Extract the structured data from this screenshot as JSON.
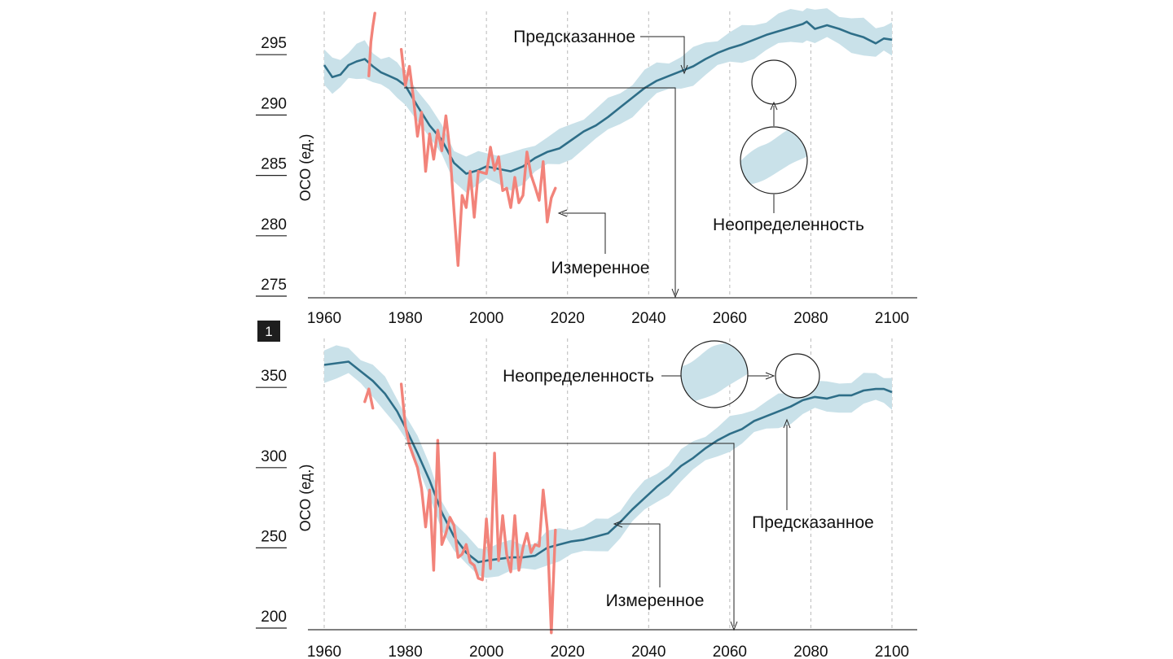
{
  "chart_data": [
    {
      "type": "line",
      "ylabel": "ОСО (ед.)",
      "xticks": [
        "1960",
        "1980",
        "2000",
        "2020",
        "2040",
        "2060",
        "2080",
        "2100"
      ],
      "yticks": [
        "275",
        "280",
        "285",
        "290",
        "295"
      ],
      "xlim": [
        1960,
        2100
      ],
      "ylim": [
        274,
        298
      ],
      "grid": "vertical dashed",
      "annotations": {
        "predicted": "Предсказанное",
        "measured": "Измеренное",
        "uncertainty": "Неопределенность"
      },
      "predicted_x": [
        1960,
        1962,
        1964,
        1966,
        1968,
        1970,
        1972,
        1974,
        1976,
        1978,
        1980,
        1983,
        1986,
        1989,
        1992,
        1995,
        1998,
        2000,
        2003,
        2006,
        2009,
        2012,
        2015,
        2018,
        2021,
        2024,
        2027,
        2030,
        2033,
        2036,
        2039,
        2042,
        2045,
        2048,
        2051,
        2054,
        2057,
        2060,
        2063,
        2066,
        2069,
        2072,
        2075,
        2078,
        2079,
        2081,
        2084,
        2087,
        2090,
        2093,
        2096,
        2098,
        2100
      ],
      "predicted_y": [
        293.6,
        292.6,
        292.8,
        293.6,
        293.9,
        294.1,
        293.5,
        293.0,
        292.7,
        292.4,
        291.9,
        290.2,
        288.6,
        287.4,
        285.5,
        284.6,
        284.9,
        285.2,
        285.0,
        284.8,
        285.2,
        285.9,
        286.4,
        286.7,
        287.4,
        288.1,
        288.6,
        289.3,
        290.1,
        290.9,
        291.7,
        292.3,
        292.7,
        293.1,
        293.5,
        294.1,
        294.6,
        295.0,
        295.3,
        295.7,
        296.1,
        296.4,
        296.7,
        297.0,
        297.2,
        296.6,
        296.9,
        296.6,
        296.2,
        295.9,
        295.4,
        295.8,
        295.7
      ],
      "band_width": 1.3,
      "measured_segments": [
        {
          "x": [
            1971,
            1971.5,
            1972,
            1972.5
          ],
          "y": [
            292.7,
            295.5,
            296.8,
            297.9
          ]
        },
        {
          "x": [
            1979,
            1980,
            1981,
            1982,
            1983,
            1984,
            1985,
            1986,
            1987,
            1988,
            1989,
            1990,
            1991,
            1992,
            1993,
            1994,
            1995,
            1996,
            1997,
            1998,
            1999,
            2000,
            2001,
            2002,
            2003,
            2004,
            2005,
            2006,
            2007,
            2008,
            2009,
            2010,
            2011,
            2012,
            2013,
            2014,
            2015,
            2016,
            2017
          ],
          "y": [
            294.9,
            291.9,
            293.5,
            290.9,
            287.7,
            289.7,
            284.8,
            287.9,
            285.8,
            288.2,
            286.5,
            289.4,
            286.5,
            281.6,
            277.0,
            282.8,
            281.8,
            284.8,
            281.0,
            284.8,
            284.7,
            284.6,
            286.8,
            284.9,
            286.0,
            283.2,
            283.4,
            281.8,
            284.3,
            282.2,
            282.8,
            286.4,
            284.5,
            283.5,
            282.4,
            285.6,
            280.6,
            282.6,
            283.4
          ]
        }
      ]
    },
    {
      "type": "line",
      "ylabel": "ОСО (ед.)",
      "xticks": [
        "1960",
        "1980",
        "2000",
        "2020",
        "2040",
        "2060",
        "2080",
        "2100"
      ],
      "yticks": [
        "200",
        "250",
        "300",
        "350"
      ],
      "xlim": [
        1960,
        2100
      ],
      "ylim": [
        195,
        370
      ],
      "grid": "vertical dashed",
      "annotations": {
        "predicted": "Предсказанное",
        "measured": "Измеренное",
        "uncertainty": "Неопределенность"
      },
      "predicted_x": [
        1960,
        1963,
        1966,
        1969,
        1972,
        1975,
        1978,
        1980,
        1983,
        1986,
        1989,
        1992,
        1995,
        1998,
        2000,
        2003,
        2006,
        2009,
        2012,
        2015,
        2018,
        2021,
        2024,
        2027,
        2030,
        2033,
        2036,
        2039,
        2042,
        2045,
        2048,
        2051,
        2054,
        2057,
        2060,
        2063,
        2066,
        2069,
        2072,
        2075,
        2078,
        2081,
        2084,
        2087,
        2090,
        2093,
        2096,
        2098,
        2100
      ],
      "predicted_y": [
        360,
        361,
        362,
        356,
        350,
        342,
        331,
        321,
        305,
        288,
        268,
        253,
        243,
        237,
        238,
        239,
        240,
        240,
        241,
        246,
        248,
        250,
        251,
        253,
        255,
        262,
        270,
        277,
        284,
        290,
        297,
        302,
        308,
        313,
        317,
        320,
        325,
        328,
        331,
        334,
        338,
        340,
        339,
        341,
        341,
        344,
        345,
        345,
        343
      ],
      "band_width": 9,
      "measured_segments": [
        {
          "x": [
            1970,
            1971,
            1972
          ],
          "y": [
            337,
            345,
            333
          ]
        },
        {
          "x": [
            1979,
            1980,
            1981,
            1982,
            1983,
            1984,
            1985,
            1986,
            1987,
            1988,
            1989,
            1990,
            1991,
            1992,
            1993,
            1994,
            1995,
            1996,
            1997,
            1998,
            1999,
            2000,
            2001,
            2002,
            2003,
            2004,
            2005,
            2006,
            2007,
            2008,
            2009,
            2010,
            2011,
            2012,
            2013,
            2014,
            2015,
            2016,
            2017
          ],
          "y": [
            348,
            322,
            310,
            303,
            296,
            283,
            259,
            282,
            232,
            313,
            248,
            255,
            265,
            260,
            240,
            242,
            248,
            237,
            235,
            227,
            226,
            264,
            233,
            305,
            238,
            266,
            242,
            231,
            266,
            232,
            246,
            255,
            243,
            248,
            247,
            282,
            258,
            193,
            257
          ]
        }
      ]
    }
  ],
  "panel_badge": "1",
  "colors": {
    "predicted": "#2e6e88",
    "band": "#c9e1e9",
    "measured": "#f2837a",
    "badge_bg": "#1e1e1e"
  }
}
